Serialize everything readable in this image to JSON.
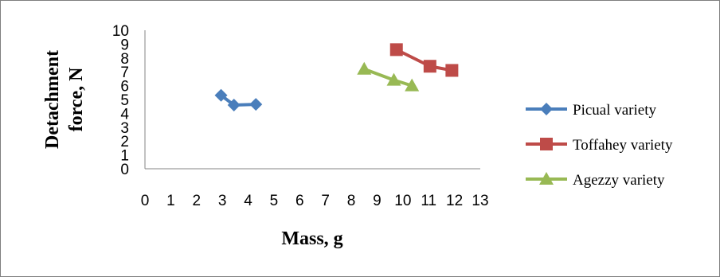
{
  "chart_data": {
    "type": "scatter",
    "xlabel": "Mass, g",
    "ylabel": "Detachment force, N",
    "xlim": [
      0,
      13
    ],
    "ylim": [
      0,
      10
    ],
    "x_ticks": [
      "0",
      "1",
      "2",
      "3",
      "4",
      "5",
      "6",
      "7",
      "8",
      "9",
      "10",
      "11",
      "12",
      "13"
    ],
    "y_ticks": [
      "0",
      "1",
      "2",
      "3",
      "4",
      "5",
      "6",
      "7",
      "8",
      "9",
      "10"
    ],
    "grid": false,
    "legend_position": "right",
    "series": [
      {
        "name": "Picual variety",
        "color": "#4a7ebb",
        "marker": "diamond",
        "x": [
          2.95,
          3.45,
          4.3
        ],
        "y": [
          5.3,
          4.6,
          4.65
        ]
      },
      {
        "name": "Toffahey variety",
        "color": "#be4b48",
        "marker": "square",
        "x": [
          9.75,
          11.05,
          11.9
        ],
        "y": [
          8.6,
          7.4,
          7.1
        ]
      },
      {
        "name": "Agezzy variety",
        "color": "#98b954",
        "marker": "triangle",
        "x": [
          8.5,
          9.65,
          10.35
        ],
        "y": [
          7.2,
          6.4,
          6.0
        ]
      }
    ]
  }
}
